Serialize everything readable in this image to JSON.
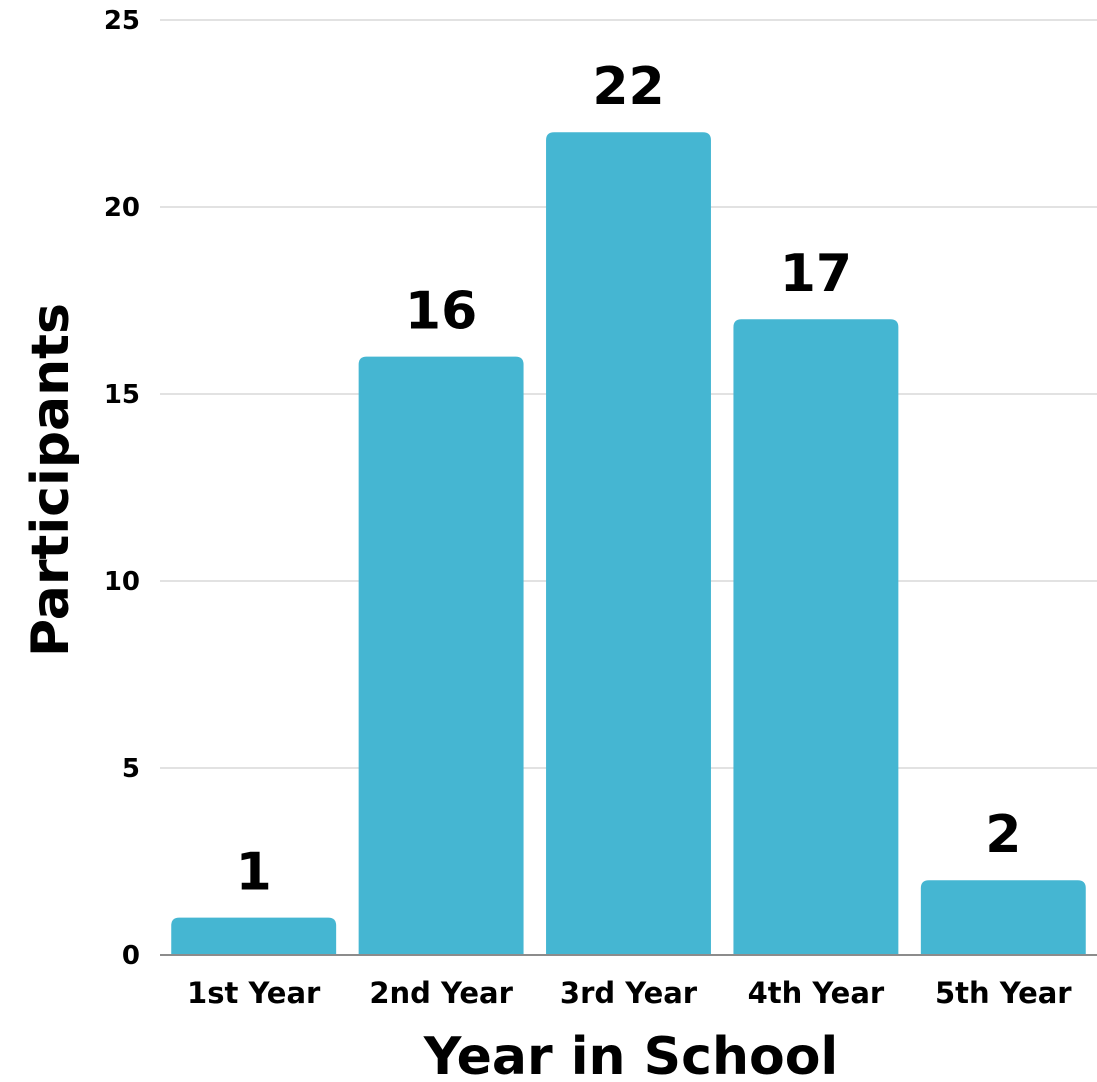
{
  "chart_data": {
    "type": "bar",
    "categories": [
      "1st Year",
      "2nd Year",
      "3rd Year",
      "4th Year",
      "5th Year"
    ],
    "values": [
      1,
      16,
      22,
      17,
      2
    ],
    "data_labels": [
      "1",
      "16",
      "22",
      "17",
      "2"
    ],
    "xlabel": "Year in School",
    "ylabel": "Participants",
    "ylim": [
      0,
      25
    ],
    "yticks": [
      0,
      5,
      10,
      15,
      20,
      25
    ],
    "ytick_labels": [
      "0",
      "5",
      "10",
      "15",
      "20",
      "25"
    ],
    "grid": true,
    "legend": "none",
    "colors": {
      "bar": "#45b6d2",
      "text": "#000000",
      "grid": "#d9d9d9"
    }
  }
}
